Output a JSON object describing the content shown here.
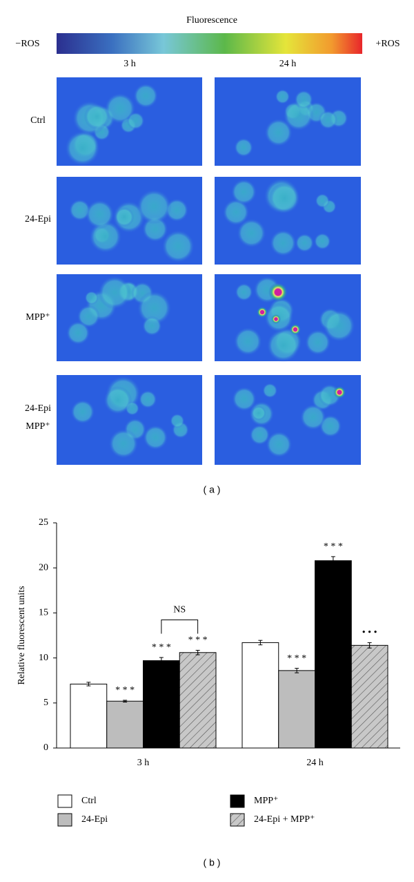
{
  "panel_a": {
    "scale_title": "Fluorescence",
    "scale_low": "−ROS",
    "scale_high": "+ROS",
    "columns": [
      "3 h",
      "24 h"
    ],
    "rows": [
      "Ctrl",
      "24-Epi",
      "MPP⁺",
      "24-Epi\nMPP⁺"
    ],
    "label": "( a )"
  },
  "chart_data": {
    "type": "bar",
    "ylabel": "Relative fluorescent units",
    "categories": [
      "3 h",
      "24 h"
    ],
    "series": [
      {
        "name": "Ctrl",
        "color": "#ffffff",
        "values": [
          7.1,
          11.7
        ],
        "errors": [
          0.2,
          0.25
        ],
        "annotations": [
          null,
          null
        ]
      },
      {
        "name": "24-Epi",
        "color": "#bdbdbd",
        "values": [
          5.2,
          8.6
        ],
        "errors": [
          0.1,
          0.25
        ],
        "annotations": [
          "* * *",
          "* * *"
        ]
      },
      {
        "name": "MPP⁺",
        "color": "#000000",
        "values": [
          9.7,
          20.8
        ],
        "errors": [
          0.35,
          0.45
        ],
        "annotations": [
          "* * *",
          "* * *"
        ]
      },
      {
        "name": "24-Epi + MPP⁺",
        "color": "#c8c8c8",
        "hatch": true,
        "values": [
          10.6,
          11.4
        ],
        "errors": [
          0.25,
          0.3
        ],
        "annotations": [
          "* * *",
          "• • •"
        ]
      }
    ],
    "ns_label": "NS",
    "ylim": [
      0,
      25
    ],
    "yticks": [
      0,
      5,
      10,
      15,
      20,
      25
    ],
    "label": "( b )"
  }
}
